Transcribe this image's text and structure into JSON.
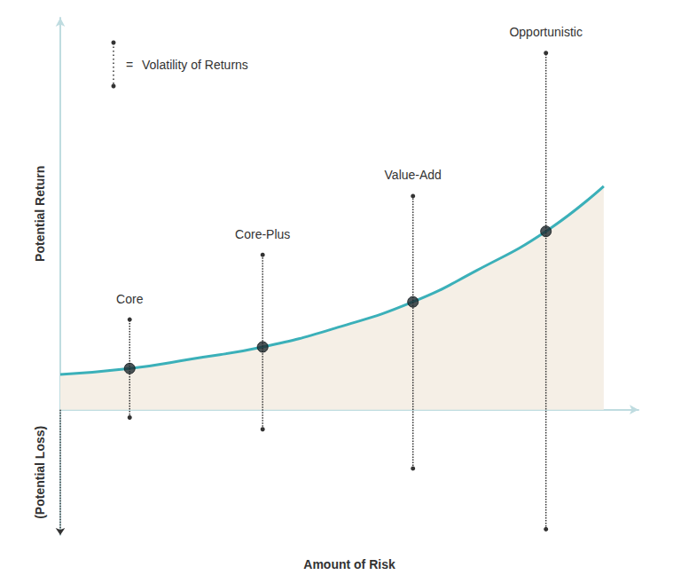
{
  "chart_data": {
    "type": "line",
    "x_label": "Amount of Risk",
    "y_label": "Potential Return",
    "y_label_negative": "(Potential Loss)",
    "xlim": [
      0,
      10
    ],
    "ylim": [
      -3.2,
      10
    ],
    "tick_labels": false,
    "grid": false,
    "legend": "upper left",
    "key": {
      "sign": "=",
      "label": "Volatility of Returns"
    },
    "curve": {
      "x": [
        0,
        1.2,
        2.3,
        3.5,
        4.8,
        6.1,
        7.2,
        8.4,
        9.4
      ],
      "values": [
        0.9,
        1.05,
        1.3,
        1.6,
        2.1,
        2.75,
        3.55,
        4.55,
        5.7
      ],
      "color": "#3bb0b9"
    },
    "strategies": {
      "categories": [
        "Core",
        "Core-Plus",
        "Value-Add",
        "Opportunistic"
      ],
      "x": [
        1.2,
        3.5,
        6.1,
        8.4
      ],
      "values": [
        1.05,
        1.6,
        2.75,
        4.55
      ],
      "volatility_high": [
        2.3,
        3.95,
        5.45,
        9.1
      ],
      "volatility_low": [
        -0.2,
        -0.5,
        -1.5,
        -3.05
      ],
      "color": "#1f2a30"
    }
  }
}
